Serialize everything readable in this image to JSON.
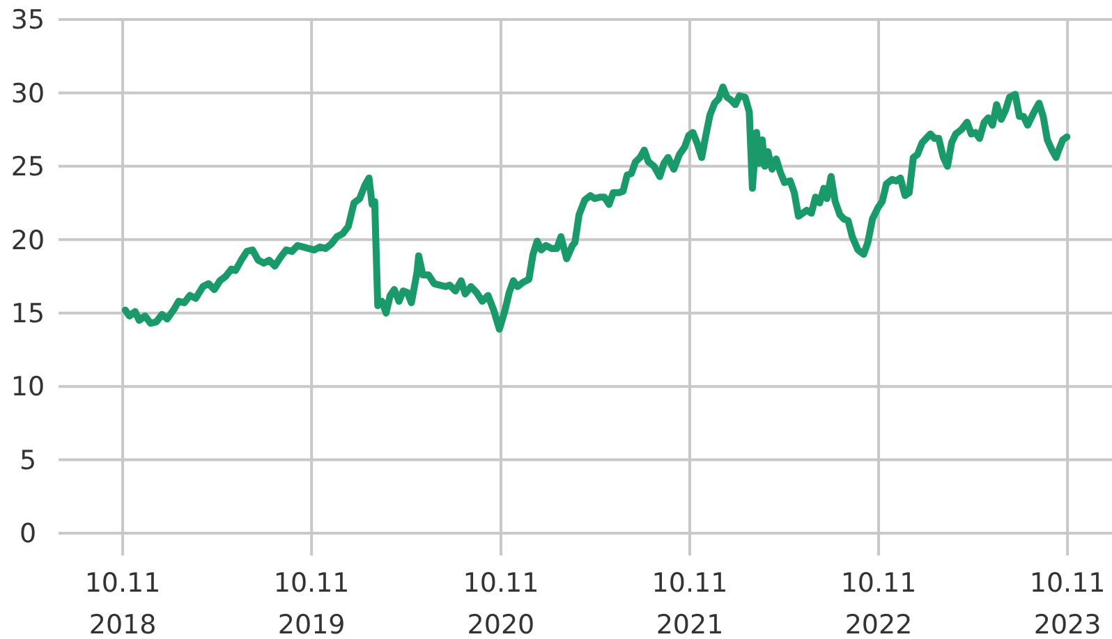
{
  "chart_data": {
    "type": "line",
    "grid": true,
    "xlim": [
      "2018-06-09",
      "2024-01-05"
    ],
    "xticks": [
      {
        "value": "2018-10-11",
        "label": "10.11\n2018"
      },
      {
        "value": "2019-10-11",
        "label": "10.11\n2019"
      },
      {
        "value": "2020-10-11",
        "label": "10.11\n2020"
      },
      {
        "value": "2021-10-11",
        "label": "10.11\n2021"
      },
      {
        "value": "2022-10-11",
        "label": "10.11\n2022"
      },
      {
        "value": "2023-10-11",
        "label": "10.11\n2023"
      }
    ],
    "ylim": [
      0,
      35
    ],
    "yticks": [
      0,
      5,
      10,
      15,
      20,
      25,
      30,
      35
    ],
    "series": [
      {
        "color": "#1a9a6a",
        "x": [
          "2018-10-16",
          "2018-10-24",
          "2018-11-04",
          "2018-11-12",
          "2018-11-23",
          "2018-12-04",
          "2018-12-15",
          "2018-12-26",
          "2019-01-05",
          "2019-01-19",
          "2019-01-27",
          "2019-02-07",
          "2019-02-18",
          "2019-03-01",
          "2019-03-15",
          "2019-03-26",
          "2019-04-06",
          "2019-04-17",
          "2019-04-28",
          "2019-05-09",
          "2019-05-17",
          "2019-05-28",
          "2019-06-08",
          "2019-06-19",
          "2019-06-30",
          "2019-07-11",
          "2019-07-21",
          "2019-08-01",
          "2019-08-12",
          "2019-08-23",
          "2019-09-03",
          "2019-09-14",
          "2019-09-25",
          "2019-10-05",
          "2019-10-16",
          "2019-10-27",
          "2019-11-07",
          "2019-11-18",
          "2019-11-29",
          "2019-12-10",
          "2019-12-21",
          "2020-01-01",
          "2020-01-12",
          "2020-01-22",
          "2020-01-30",
          "2020-02-05",
          "2020-02-10",
          "2020-02-16",
          "2020-02-24",
          "2020-03-03",
          "2020-03-11",
          "2020-03-19",
          "2020-03-28",
          "2020-04-05",
          "2020-04-13",
          "2020-04-21",
          "2020-05-02",
          "2020-05-05",
          "2020-05-13",
          "2020-05-24",
          "2020-06-04",
          "2020-06-15",
          "2020-06-26",
          "2020-07-04",
          "2020-07-15",
          "2020-07-26",
          "2020-08-03",
          "2020-08-14",
          "2020-08-25",
          "2020-09-05",
          "2020-09-16",
          "2020-09-27",
          "2020-10-08",
          "2020-10-19",
          "2020-10-27",
          "2020-11-04",
          "2020-11-12",
          "2020-11-23",
          "2020-12-04",
          "2020-12-12",
          "2020-12-20",
          "2020-12-28",
          "2021-01-06",
          "2021-01-17",
          "2021-01-27",
          "2021-02-04",
          "2021-02-15",
          "2021-02-26",
          "2021-03-03",
          "2021-03-11",
          "2021-03-22",
          "2021-04-02",
          "2021-04-10",
          "2021-04-21",
          "2021-04-29",
          "2021-05-08",
          "2021-05-16",
          "2021-05-27",
          "2021-06-04",
          "2021-06-12",
          "2021-06-20",
          "2021-06-28",
          "2021-07-07",
          "2021-07-15",
          "2021-07-23",
          "2021-08-03",
          "2021-08-14",
          "2021-08-22",
          "2021-08-30",
          "2021-09-10",
          "2021-09-21",
          "2021-10-01",
          "2021-10-09",
          "2021-10-17",
          "2021-10-26",
          "2021-11-03",
          "2021-11-11",
          "2021-11-19",
          "2021-11-28",
          "2021-12-06",
          "2021-12-14",
          "2021-12-22",
          "2021-12-30",
          "2022-01-07",
          "2022-01-15",
          "2022-01-26",
          "2022-02-03",
          "2022-02-09",
          "2022-02-17",
          "2022-02-22",
          "2022-02-28",
          "2022-03-05",
          "2022-03-11",
          "2022-03-19",
          "2022-03-27",
          "2022-04-04",
          "2022-04-12",
          "2022-04-23",
          "2022-05-01",
          "2022-05-09",
          "2022-05-17",
          "2022-05-25",
          "2022-06-03",
          "2022-06-11",
          "2022-06-19",
          "2022-06-27",
          "2022-07-03",
          "2022-07-11",
          "2022-07-19",
          "2022-07-28",
          "2022-08-05",
          "2022-08-13",
          "2022-08-21",
          "2022-09-01",
          "2022-09-12",
          "2022-09-20",
          "2022-09-29",
          "2022-10-10",
          "2022-10-18",
          "2022-10-26",
          "2022-11-06",
          "2022-11-14",
          "2022-11-22",
          "2022-12-01",
          "2022-12-09",
          "2022-12-17",
          "2022-12-25",
          "2023-01-03",
          "2023-01-11",
          "2023-01-19",
          "2023-01-27",
          "2023-02-04",
          "2023-02-13",
          "2023-02-21",
          "2023-03-01",
          "2023-03-09",
          "2023-03-20",
          "2023-03-31",
          "2023-04-08",
          "2023-04-16",
          "2023-04-24",
          "2023-05-03",
          "2023-05-11",
          "2023-05-19",
          "2023-05-27",
          "2023-06-05",
          "2023-06-13",
          "2023-06-21",
          "2023-07-02",
          "2023-07-10",
          "2023-07-18",
          "2023-07-26",
          "2023-08-06",
          "2023-08-17",
          "2023-08-25",
          "2023-09-02",
          "2023-09-11",
          "2023-09-19",
          "2023-09-24",
          "2023-10-02",
          "2023-10-10"
        ],
        "values": [
          15.2,
          14.8,
          15.1,
          14.5,
          14.8,
          14.3,
          14.4,
          14.9,
          14.6,
          15.3,
          15.8,
          15.7,
          16.2,
          16.0,
          16.8,
          17.0,
          16.6,
          17.2,
          17.5,
          18.0,
          17.9,
          18.6,
          19.2,
          19.3,
          18.6,
          18.4,
          18.6,
          18.2,
          18.8,
          19.3,
          19.2,
          19.6,
          19.5,
          19.4,
          19.3,
          19.5,
          19.4,
          19.7,
          20.2,
          20.4,
          20.9,
          22.5,
          22.8,
          23.7,
          24.2,
          22.4,
          22.6,
          15.5,
          15.8,
          15.0,
          16.2,
          16.6,
          15.8,
          16.5,
          16.4,
          15.7,
          17.8,
          18.9,
          17.6,
          17.6,
          17.0,
          16.9,
          16.8,
          16.9,
          16.5,
          17.2,
          16.3,
          16.8,
          16.4,
          15.8,
          16.2,
          15.2,
          13.9,
          15.2,
          16.4,
          17.2,
          16.8,
          17.1,
          17.3,
          19.0,
          19.9,
          19.3,
          19.6,
          19.4,
          19.4,
          20.2,
          18.7,
          19.6,
          19.8,
          21.7,
          22.7,
          23.0,
          22.8,
          22.9,
          22.9,
          22.4,
          23.2,
          23.2,
          23.3,
          24.4,
          24.5,
          25.3,
          25.6,
          26.1,
          25.3,
          25.0,
          24.3,
          25.2,
          25.6,
          24.8,
          25.8,
          26.3,
          27.1,
          27.3,
          26.5,
          25.6,
          27.1,
          28.5,
          29.3,
          29.6,
          30.4,
          29.7,
          29.5,
          29.2,
          29.8,
          29.7,
          28.7,
          23.5,
          27.3,
          25.2,
          26.8,
          25.0,
          26.0,
          24.8,
          25.5,
          24.6,
          23.9,
          24.0,
          23.2,
          21.6,
          21.8,
          22.0,
          21.8,
          22.9,
          22.5,
          23.5,
          22.8,
          24.3,
          22.6,
          21.7,
          21.4,
          21.3,
          20.2,
          19.3,
          19.0,
          19.8,
          21.4,
          22.2,
          22.6,
          23.8,
          24.1,
          24.0,
          24.2,
          23.0,
          23.2,
          25.6,
          25.8,
          26.6,
          26.9,
          27.2,
          26.9,
          26.9,
          25.6,
          25.0,
          26.6,
          27.2,
          27.5,
          28.0,
          27.2,
          27.3,
          26.9,
          28.0,
          28.3,
          27.8,
          29.2,
          28.2,
          28.8,
          29.7,
          29.9,
          28.4,
          28.4,
          27.8,
          28.6,
          29.3,
          28.4,
          26.8,
          26.1,
          25.6,
          26.1,
          26.8,
          27.0
        ]
      }
    ]
  }
}
